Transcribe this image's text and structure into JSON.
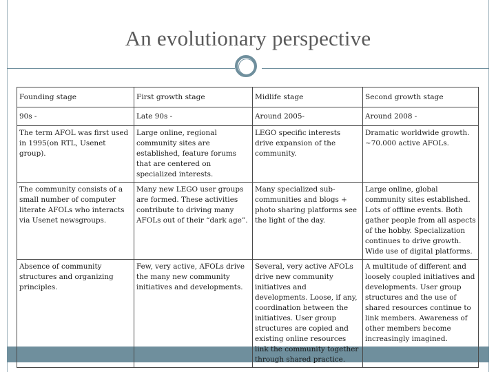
{
  "slide": {
    "title": "An evolutionary perspective"
  },
  "table": {
    "headers": [
      "Founding stage",
      "First growth stage",
      "Midlife stage",
      "Second growth stage"
    ],
    "dates": [
      "90s -",
      "Late 90s -",
      "Around 2005-",
      "Around 2008 -"
    ],
    "rows": [
      [
        "The term AFOL was first used in 1995(on RTL, Usenet group).",
        "Large online, regional community sites are established, feature forums that are centered on specialized interests.",
        "LEGO specific interests drive expansion of the community.",
        "Dramatic worldwide growth. ~70.000 active AFOLs."
      ],
      [
        "The community consists of a small number of computer literate AFOLs who interacts via Usenet newsgroups.",
        "Many new LEGO user groups are formed. These activities contribute to driving many AFOLs out of their “dark age”.",
        "Many specialized sub-communities and blogs + photo sharing platforms see the light of the day.",
        "Large online, global community sites established. Lots of offline events. Both gather people from all aspects of the hobby. Specialization continues to drive growth. Wide use of digital platforms."
      ],
      [
        "Absence of community structures and organizing principles.",
        "Few, very active, AFOLs drive the many new community initiatives and developments.",
        "Several, very active AFOLs drive new community initiatives and developments. Loose, if any, coordination between the initiatives. User group structures are copied and existing online resources link the community together through shared practice.",
        "A multitude of different and loosely coupled initiatives and developments. User group structures and the use of shared resources continue to link members. Awareness of other members become increasingly imagined."
      ]
    ]
  }
}
